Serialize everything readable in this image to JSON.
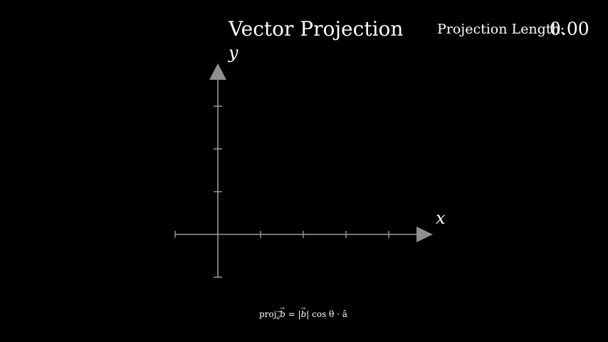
{
  "title": "Vector Projection",
  "projection": {
    "label": "Projection Length:",
    "value": "0.00"
  },
  "axes": {
    "x_label": "x",
    "y_label": "y",
    "x_range": [
      -1,
      5
    ],
    "y_range": [
      -1,
      4
    ],
    "x_ticks": [
      -1,
      1,
      2,
      3,
      4
    ],
    "y_ticks": [
      -1,
      1,
      2,
      3
    ],
    "axis_color": "#9a9a9a"
  },
  "formula": {
    "proj": "proj",
    "a": "a",
    "b": "b",
    "equals": " = |",
    "b2": "b",
    "rest": "| cos θ · â"
  },
  "colors": {
    "background": "#000000",
    "text": "#ffffff"
  }
}
